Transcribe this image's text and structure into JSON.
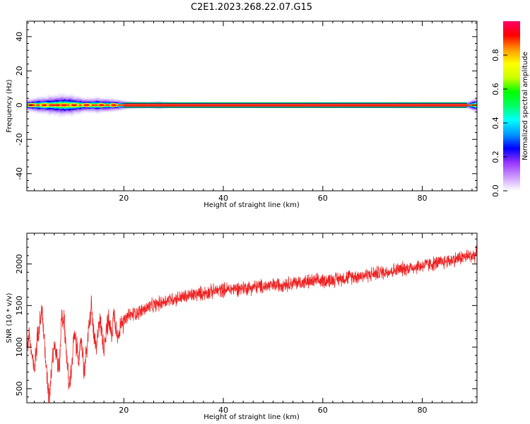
{
  "figure": {
    "title": "C2E1.2023.268.22.07.G15"
  },
  "chart_data": [
    {
      "type": "heatmap",
      "xlabel": "Height of straight line (km)",
      "ylabel": "Frequency (Hz)",
      "xlim": [
        0.5,
        91
      ],
      "ylim": [
        -50,
        49
      ],
      "x_ticks": [
        20,
        40,
        60,
        80
      ],
      "y_ticks": [
        -40,
        -20,
        0,
        20,
        40
      ],
      "dominant_frequency_hz": 0,
      "spectral_spread_hz_by_height": [
        {
          "x": 1,
          "half_width": 3.5
        },
        {
          "x": 4,
          "half_width": 5
        },
        {
          "x": 8,
          "half_width": 6.5
        },
        {
          "x": 10,
          "half_width": 5.5
        },
        {
          "x": 12,
          "half_width": 4
        },
        {
          "x": 15,
          "half_width": 4.5
        },
        {
          "x": 18,
          "half_width": 3.5
        },
        {
          "x": 21,
          "half_width": 2
        },
        {
          "x": 25,
          "half_width": 1.5
        },
        {
          "x": 27,
          "half_width": 2
        },
        {
          "x": 30,
          "half_width": 1.2
        },
        {
          "x": 60,
          "half_width": 1.2
        },
        {
          "x": 89,
          "half_width": 1.5
        },
        {
          "x": 91,
          "half_width": 4.5
        }
      ],
      "colorbar": {
        "label": "Normalized spectral amplitude",
        "range": [
          0,
          1
        ],
        "ticks": [
          "0.0",
          "0.2",
          "0.4",
          "0.6",
          "0.8"
        ],
        "colors": [
          "#ffffff",
          "#cc99ff",
          "#9933ff",
          "#0000ff",
          "#0099ff",
          "#00ffff",
          "#00ff66",
          "#00ff00",
          "#ccff00",
          "#ffff00",
          "#ff9900",
          "#ff0000",
          "#ff0066"
        ]
      }
    },
    {
      "type": "line",
      "xlabel": "Height of straight line (km)",
      "ylabel": "SNR (10 * v/v)",
      "xlim": [
        0.5,
        91
      ],
      "ylim": [
        330,
        2370
      ],
      "x_ticks": [
        20,
        40,
        60,
        80
      ],
      "y_ticks": [
        500,
        1000,
        1500,
        2000
      ],
      "series": [
        {
          "color": "#ee2222",
          "x": [
            0.5,
            1,
            1.5,
            2,
            2.5,
            3,
            3.5,
            4,
            4.5,
            5,
            5.5,
            6,
            6.5,
            7,
            7.5,
            8,
            8.5,
            9,
            9.5,
            10,
            10.5,
            11,
            11.5,
            12,
            12.5,
            13,
            13.5,
            14,
            14.5,
            15,
            15.5,
            16,
            16.5,
            17,
            17.5,
            18,
            18.5,
            19,
            19.5,
            20,
            21,
            22,
            23,
            24,
            25,
            26,
            27,
            28,
            29,
            30,
            32,
            34,
            36,
            38,
            40,
            42,
            44,
            46,
            48,
            50,
            52,
            54,
            56,
            58,
            60,
            62,
            64,
            66,
            68,
            70,
            72,
            74,
            76,
            78,
            80,
            82,
            84,
            86,
            88,
            90,
            91
          ],
          "y": [
            1000,
            1150,
            900,
            700,
            1050,
            1300,
            1450,
            1100,
            650,
            380,
            800,
            1050,
            900,
            700,
            1400,
            1300,
            900,
            500,
            750,
            1150,
            1000,
            850,
            1100,
            700,
            950,
            1250,
            1500,
            1100,
            950,
            1350,
            1200,
            1000,
            1250,
            1300,
            1150,
            1400,
            1250,
            1100,
            1350,
            1300,
            1380,
            1400,
            1420,
            1450,
            1480,
            1500,
            1520,
            1550,
            1570,
            1580,
            1600,
            1630,
            1650,
            1670,
            1690,
            1700,
            1710,
            1720,
            1730,
            1740,
            1760,
            1770,
            1780,
            1790,
            1800,
            1810,
            1830,
            1850,
            1860,
            1880,
            1900,
            1920,
            1940,
            1960,
            1980,
            2000,
            2020,
            2050,
            2080,
            2100,
            2120
          ],
          "noise_amplitude": 90
        }
      ]
    }
  ]
}
